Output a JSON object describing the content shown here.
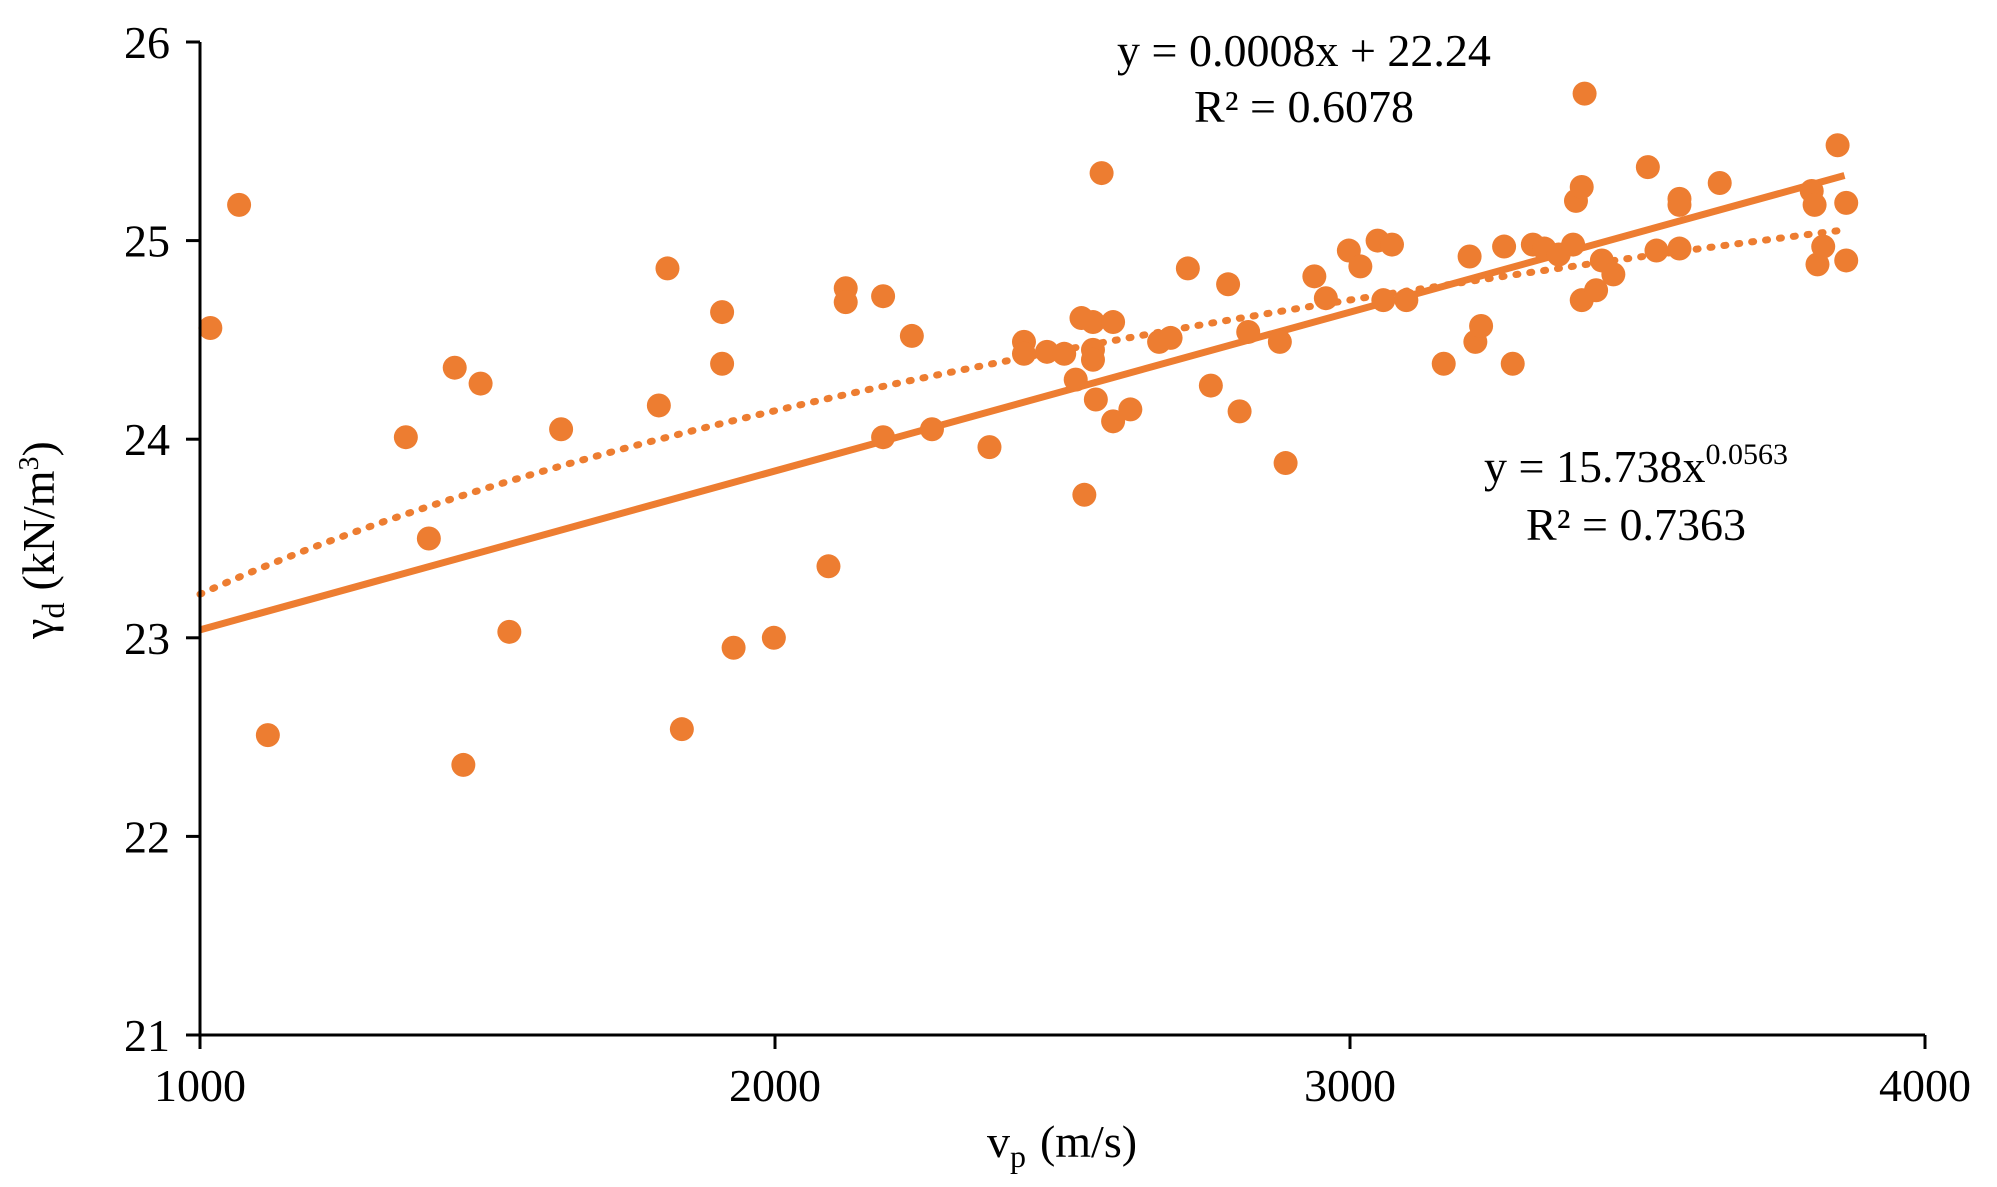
{
  "chart_data": {
    "type": "scatter",
    "title": "",
    "xlabel": "v",
    "xlabel_sub": "p",
    "xlabel_unit": "(m/s)",
    "ylabel": "γ",
    "ylabel_sub": "d",
    "ylabel_unit": "(kN/m",
    "ylabel_sup": "3",
    "ylabel_close": ")",
    "xlim": [
      1000,
      4000
    ],
    "ylim": [
      21,
      26
    ],
    "xticks": [
      "1000",
      "2000",
      "3000",
      "4000"
    ],
    "yticks": [
      "21",
      "22",
      "23",
      "24",
      "25",
      "26"
    ],
    "grid": false,
    "legend": "none",
    "color": "#ED7D31",
    "series": [
      {
        "name": "measurements",
        "points": [
          [
            1018,
            24.56
          ],
          [
            1068,
            25.18
          ],
          [
            1118,
            22.51
          ],
          [
            1358,
            24.01
          ],
          [
            1398,
            23.5
          ],
          [
            1443,
            24.36
          ],
          [
            1458,
            22.36
          ],
          [
            1488,
            24.28
          ],
          [
            1538,
            23.03
          ],
          [
            1628,
            24.05
          ],
          [
            1798,
            24.17
          ],
          [
            1813,
            24.86
          ],
          [
            1838,
            22.54
          ],
          [
            1908,
            24.64
          ],
          [
            1908,
            24.38
          ],
          [
            1928,
            22.95
          ],
          [
            1998,
            23.0
          ],
          [
            2093,
            23.36
          ],
          [
            2123,
            24.76
          ],
          [
            2123,
            24.69
          ],
          [
            2188,
            24.72
          ],
          [
            2188,
            24.01
          ],
          [
            2238,
            24.52
          ],
          [
            2273,
            24.05
          ],
          [
            2373,
            23.96
          ],
          [
            2433,
            24.49
          ],
          [
            2433,
            24.43
          ],
          [
            2473,
            24.44
          ],
          [
            2503,
            24.43
          ],
          [
            2523,
            24.3
          ],
          [
            2533,
            24.61
          ],
          [
            2538,
            23.72
          ],
          [
            2553,
            24.59
          ],
          [
            2553,
            24.45
          ],
          [
            2553,
            24.4
          ],
          [
            2558,
            24.2
          ],
          [
            2568,
            25.34
          ],
          [
            2588,
            24.59
          ],
          [
            2588,
            24.09
          ],
          [
            2618,
            24.15
          ],
          [
            2668,
            24.49
          ],
          [
            2688,
            24.51
          ],
          [
            2718,
            24.86
          ],
          [
            2758,
            24.27
          ],
          [
            2788,
            24.78
          ],
          [
            2808,
            24.14
          ],
          [
            2823,
            24.54
          ],
          [
            2878,
            24.49
          ],
          [
            2888,
            23.88
          ],
          [
            2938,
            24.82
          ],
          [
            2958,
            24.71
          ],
          [
            2998,
            24.95
          ],
          [
            3018,
            24.87
          ],
          [
            3048,
            25.0
          ],
          [
            3058,
            24.7
          ],
          [
            3073,
            24.98
          ],
          [
            3098,
            24.7
          ],
          [
            3163,
            24.38
          ],
          [
            3208,
            24.92
          ],
          [
            3218,
            24.49
          ],
          [
            3228,
            24.57
          ],
          [
            3268,
            24.97
          ],
          [
            3283,
            24.38
          ],
          [
            3318,
            24.98
          ],
          [
            3338,
            24.96
          ],
          [
            3363,
            24.93
          ],
          [
            3388,
            24.98
          ],
          [
            3393,
            25.2
          ],
          [
            3403,
            25.27
          ],
          [
            3403,
            24.7
          ],
          [
            3408,
            25.74
          ],
          [
            3428,
            24.75
          ],
          [
            3438,
            24.9
          ],
          [
            3458,
            24.83
          ],
          [
            3518,
            25.37
          ],
          [
            3533,
            24.95
          ],
          [
            3573,
            25.21
          ],
          [
            3573,
            25.18
          ],
          [
            3573,
            24.96
          ],
          [
            3643,
            25.29
          ],
          [
            3803,
            25.25
          ],
          [
            3808,
            25.18
          ],
          [
            3813,
            24.88
          ],
          [
            3823,
            24.97
          ],
          [
            3848,
            25.48
          ],
          [
            3863,
            24.9
          ],
          [
            3863,
            25.19
          ]
        ]
      },
      {
        "name": "Linear trendline",
        "style": "solid",
        "equation": "y = 0.0008x + 22.24",
        "r2_label": "R² = 0.6078",
        "slope": 0.0008,
        "intercept": 22.24,
        "x_range": [
          1000,
          3860
        ]
      },
      {
        "name": "Power trendline",
        "style": "dotted",
        "equation_base": "y = 15.738x",
        "equation_exp": "0.0563",
        "r2_label": "R² = 0.7363",
        "coefficient": 15.738,
        "exponent": 0.0563,
        "x_range": [
          1000,
          3860
        ]
      }
    ]
  }
}
